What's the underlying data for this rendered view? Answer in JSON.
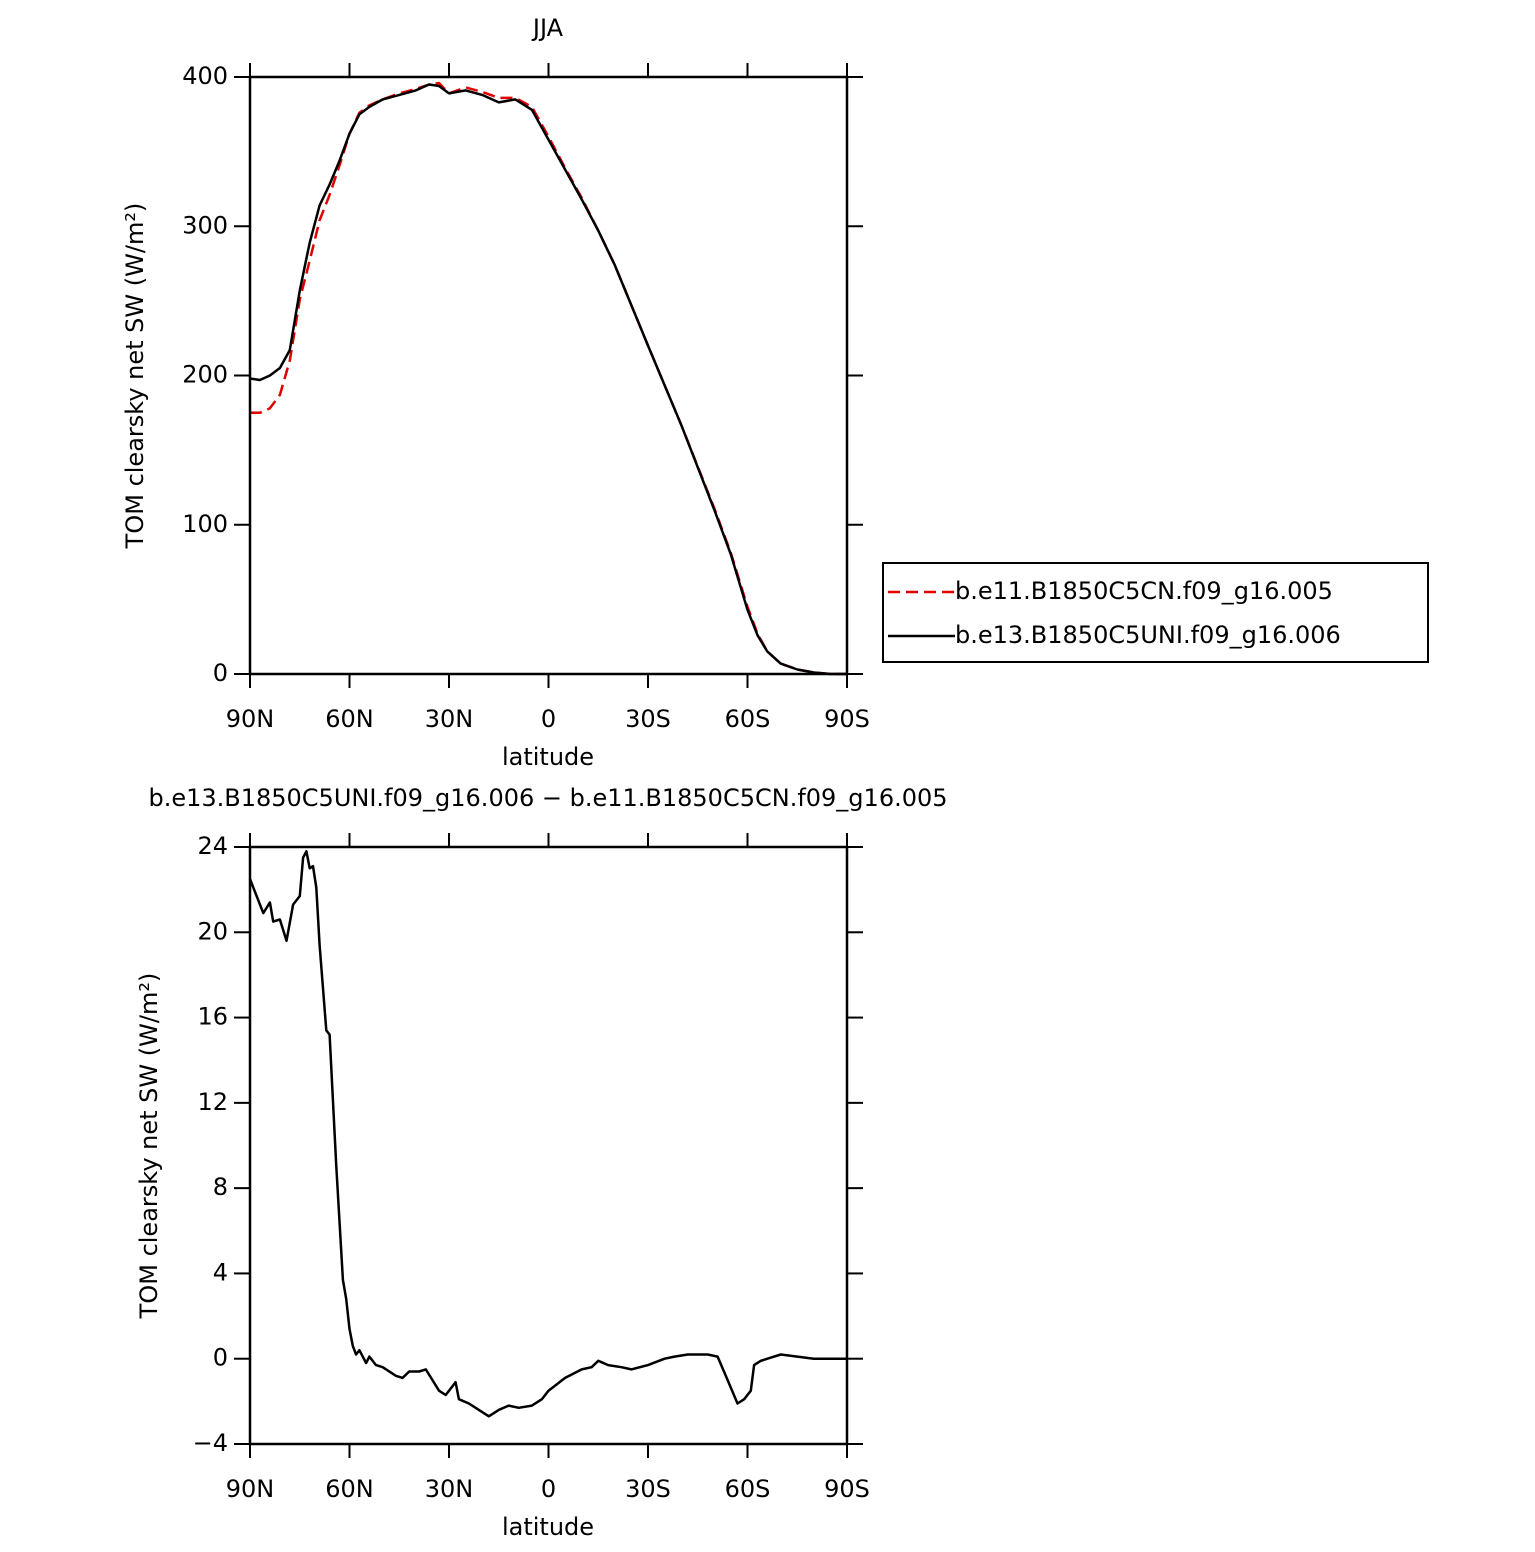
{
  "chart_data": [
    {
      "type": "line",
      "title": "JJA",
      "xlabel": "latitude",
      "ylabel": "TOM clearsky net SW (W/m²)",
      "x": [
        90,
        87,
        84,
        81,
        78,
        75,
        72,
        69,
        66,
        63,
        60,
        57,
        54,
        50,
        45,
        40,
        36,
        33,
        30,
        25,
        20,
        15,
        10,
        5,
        0,
        -5,
        -10,
        -15,
        -20,
        -30,
        -40,
        -50,
        -55,
        -60,
        -63,
        -66,
        -70,
        -75,
        -80,
        -85,
        -90
      ],
      "series": [
        {
          "name": "b.e11.B1850C5CN.f09_g16.005",
          "color": "#e00000",
          "dash": true,
          "values": [
            175,
            175,
            178,
            187,
            210,
            251,
            277,
            304,
            321,
            341,
            362,
            376,
            381,
            385,
            389,
            392,
            395,
            396,
            389,
            393,
            390,
            386,
            386,
            380,
            360,
            339,
            319,
            297,
            274,
            220,
            167,
            111,
            81,
            45,
            27,
            15,
            7,
            3,
            1,
            0,
            0
          ]
        },
        {
          "name": "b.e13.B1850C5UNI.f09_g16.006",
          "color": "#000000",
          "dash": false,
          "values": [
            198,
            197,
            200,
            205,
            217,
            257,
            289,
            314,
            328,
            344,
            362,
            375,
            380,
            385,
            388,
            391,
            395,
            394,
            389,
            391,
            388,
            383,
            385,
            378,
            358,
            338,
            318,
            297,
            274,
            220,
            167,
            110,
            80,
            43,
            26,
            15,
            7,
            3,
            1,
            0,
            0
          ]
        }
      ],
      "xlim": [
        90,
        -90
      ],
      "xticks": [
        {
          "value": 90,
          "label": "90N"
        },
        {
          "value": 60,
          "label": "60N"
        },
        {
          "value": 30,
          "label": "30N"
        },
        0,
        {
          "value": -30,
          "label": "30S"
        },
        {
          "value": -60,
          "label": "60S"
        },
        {
          "value": -90,
          "label": "90S"
        }
      ],
      "ylim": [
        0,
        400
      ],
      "yticks": [
        0,
        100,
        200,
        300,
        400
      ],
      "legend": "right"
    },
    {
      "type": "line",
      "title": "b.e13.B1850C5UNI.f09_g16.006 − b.e11.B1850C5CN.f09_g16.005",
      "xlabel": "latitude",
      "ylabel": "TOM clearsky net SW (W/m²)",
      "x": [
        90,
        88,
        86,
        84,
        83,
        81,
        79,
        77,
        75,
        74,
        73,
        72,
        71,
        70,
        69,
        67,
        66,
        64,
        62,
        61,
        60,
        59,
        58,
        57,
        55,
        54,
        52,
        50,
        46,
        44,
        42,
        39,
        37,
        35,
        33,
        31,
        28,
        27,
        24,
        21,
        18,
        15,
        12,
        9,
        5,
        2,
        0,
        -5,
        -10,
        -13,
        -15,
        -18,
        -22,
        -25,
        -30,
        -35,
        -38,
        -42,
        -45,
        -48,
        -51,
        -54,
        -57,
        -59,
        -61,
        -62,
        -64,
        -66,
        -70,
        -75,
        -80,
        -90
      ],
      "values": [
        22.5,
        21.7,
        20.9,
        21.4,
        20.5,
        20.6,
        19.6,
        21.3,
        21.7,
        23.5,
        23.8,
        23,
        23.1,
        22.1,
        19.4,
        15.4,
        15.2,
        9.1,
        3.7,
        2.8,
        1.4,
        0.6,
        0.2,
        0.4,
        -0.2,
        0.1,
        -0.3,
        -0.4,
        -0.8,
        -0.9,
        -0.6,
        -0.6,
        -0.5,
        -1,
        -1.5,
        -1.7,
        -1.1,
        -1.9,
        -2.1,
        -2.4,
        -2.7,
        -2.4,
        -2.2,
        -2.3,
        -2.2,
        -1.9,
        -1.5,
        -0.9,
        -0.5,
        -0.4,
        -0.1,
        -0.3,
        -0.4,
        -0.5,
        -0.3,
        0,
        0.1,
        0.2,
        0.2,
        0.2,
        0.1,
        -1,
        -2.1,
        -1.9,
        -1.5,
        -0.3,
        -0.1,
        0,
        0.2,
        0.1,
        0,
        0
      ],
      "color": "#000000",
      "xlim": [
        90,
        -90
      ],
      "xticks": [
        {
          "value": 90,
          "label": "90N"
        },
        {
          "value": 60,
          "label": "60N"
        },
        {
          "value": 30,
          "label": "30N"
        },
        0,
        {
          "value": -30,
          "label": "30S"
        },
        {
          "value": -60,
          "label": "60S"
        },
        {
          "value": -90,
          "label": "90S"
        }
      ],
      "ylim": [
        -4,
        24
      ],
      "yticks": [
        {
          "value": -4,
          "label": "−4"
        },
        0,
        4,
        8,
        12,
        16,
        20,
        24
      ]
    }
  ]
}
